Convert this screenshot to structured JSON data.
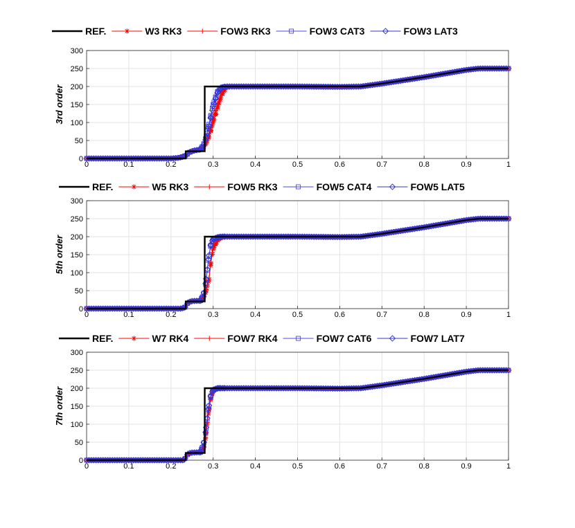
{
  "chart_data": [
    {
      "type": "line",
      "ylabel": "3rd order",
      "xlim": [
        0,
        1
      ],
      "ylim": [
        0,
        300
      ],
      "xticks": [
        "0",
        "0.1",
        "0.2",
        "0.3",
        "0.4",
        "0.5",
        "0.6",
        "0.7",
        "0.8",
        "0.9",
        "1"
      ],
      "yticks": [
        "0",
        "50",
        "100",
        "150",
        "200",
        "250",
        "300"
      ],
      "grid": true,
      "legend_position": "top, horizontal, outside",
      "series": [
        {
          "name": "REF.",
          "style": "reference",
          "color": "#000000",
          "x": [
            0,
            0.235,
            0.235,
            0.28,
            0.28,
            0.6,
            0.65,
            0.7,
            0.75,
            0.8,
            0.85,
            0.9,
            0.93,
            1.0
          ],
          "y": [
            0,
            0,
            20,
            20,
            200,
            200,
            200,
            208,
            217,
            226,
            236,
            246,
            250,
            250
          ]
        },
        {
          "name": "W3 RK3",
          "marker": "star",
          "color": "#ff0000",
          "x": [
            0,
            0.2,
            0.22,
            0.235,
            0.245,
            0.255,
            0.27,
            0.28,
            0.29,
            0.3,
            0.31,
            0.32,
            0.33,
            0.34,
            0.4,
            0.5,
            0.6,
            0.65,
            0.7,
            0.75,
            0.8,
            0.85,
            0.9,
            0.93,
            1.0
          ],
          "y": [
            0,
            0,
            2,
            8,
            18,
            22,
            25,
            35,
            60,
            100,
            140,
            175,
            195,
            200,
            200,
            200,
            199,
            200,
            208,
            217,
            226,
            236,
            246,
            250,
            250
          ]
        },
        {
          "name": "FOW3 RK3",
          "marker": "plus",
          "color": "#ff0000",
          "x": [
            0,
            0.2,
            0.22,
            0.235,
            0.245,
            0.255,
            0.27,
            0.28,
            0.29,
            0.3,
            0.31,
            0.32,
            0.33,
            0.34,
            0.4,
            0.5,
            0.6,
            0.65,
            0.7,
            0.75,
            0.8,
            0.85,
            0.9,
            0.93,
            1.0
          ],
          "y": [
            0,
            0,
            2,
            8,
            18,
            22,
            25,
            38,
            68,
            110,
            150,
            182,
            197,
            200,
            200,
            200,
            199,
            200,
            208,
            217,
            226,
            236,
            246,
            250,
            250
          ]
        },
        {
          "name": "FOW3 CAT3",
          "marker": "square",
          "color": "#4444ff",
          "x": [
            0,
            0.2,
            0.22,
            0.235,
            0.245,
            0.255,
            0.27,
            0.28,
            0.29,
            0.3,
            0.31,
            0.32,
            0.33,
            0.4,
            0.5,
            0.6,
            0.65,
            0.7,
            0.75,
            0.8,
            0.85,
            0.9,
            0.93,
            1.0
          ],
          "y": [
            0,
            0,
            2,
            8,
            18,
            22,
            25,
            45,
            95,
            150,
            185,
            198,
            200,
            200,
            200,
            199,
            200,
            208,
            217,
            226,
            236,
            246,
            250,
            250
          ]
        },
        {
          "name": "FOW3 LAT3",
          "marker": "diamond",
          "color": "#3333cc",
          "x": [
            0,
            0.2,
            0.22,
            0.235,
            0.245,
            0.255,
            0.27,
            0.28,
            0.29,
            0.3,
            0.31,
            0.32,
            0.33,
            0.4,
            0.5,
            0.6,
            0.65,
            0.7,
            0.75,
            0.8,
            0.85,
            0.9,
            0.93,
            1.0
          ],
          "y": [
            0,
            0,
            2,
            8,
            18,
            22,
            25,
            42,
            90,
            145,
            182,
            197,
            200,
            200,
            200,
            199,
            200,
            208,
            217,
            226,
            236,
            246,
            250,
            250
          ]
        }
      ]
    },
    {
      "type": "line",
      "ylabel": "5th order",
      "xlim": [
        0,
        1
      ],
      "ylim": [
        0,
        300
      ],
      "xticks": [
        "0",
        "0.1",
        "0.2",
        "0.3",
        "0.4",
        "0.5",
        "0.6",
        "0.7",
        "0.8",
        "0.9",
        "1"
      ],
      "yticks": [
        "0",
        "50",
        "100",
        "150",
        "200",
        "250",
        "300"
      ],
      "grid": true,
      "legend_position": "top, horizontal, outside",
      "series": [
        {
          "name": "REF.",
          "style": "reference",
          "color": "#000000",
          "x": [
            0,
            0.235,
            0.235,
            0.28,
            0.28,
            0.6,
            0.65,
            0.7,
            0.75,
            0.8,
            0.85,
            0.9,
            0.93,
            1.0
          ],
          "y": [
            0,
            0,
            20,
            20,
            200,
            200,
            200,
            208,
            217,
            226,
            236,
            246,
            250,
            250
          ]
        },
        {
          "name": "W5 RK3",
          "marker": "star",
          "color": "#ff0000",
          "x": [
            0,
            0.225,
            0.235,
            0.24,
            0.25,
            0.27,
            0.28,
            0.29,
            0.295,
            0.3,
            0.31,
            0.32,
            0.33,
            0.4,
            0.5,
            0.6,
            0.65,
            0.7,
            0.75,
            0.8,
            0.85,
            0.9,
            0.93,
            1.0
          ],
          "y": [
            0,
            0,
            5,
            17,
            21,
            22,
            35,
            80,
            130,
            165,
            190,
            198,
            200,
            200,
            200,
            199,
            200,
            208,
            217,
            226,
            236,
            246,
            250,
            250
          ]
        },
        {
          "name": "FOW5 RK3",
          "marker": "plus",
          "color": "#ff0000",
          "x": [
            0,
            0.225,
            0.235,
            0.24,
            0.25,
            0.27,
            0.28,
            0.29,
            0.295,
            0.3,
            0.31,
            0.32,
            0.33,
            0.4,
            0.5,
            0.6,
            0.65,
            0.7,
            0.75,
            0.8,
            0.85,
            0.9,
            0.93,
            1.0
          ],
          "y": [
            0,
            0,
            5,
            17,
            21,
            22,
            37,
            85,
            135,
            170,
            192,
            199,
            200,
            200,
            200,
            199,
            200,
            208,
            217,
            226,
            236,
            246,
            250,
            250
          ]
        },
        {
          "name": "FOW5 CAT4",
          "marker": "square",
          "color": "#4444ff",
          "x": [
            0,
            0.225,
            0.235,
            0.24,
            0.25,
            0.27,
            0.28,
            0.29,
            0.295,
            0.3,
            0.31,
            0.32,
            0.4,
            0.5,
            0.6,
            0.65,
            0.7,
            0.75,
            0.8,
            0.85,
            0.9,
            0.93,
            1.0
          ],
          "y": [
            0,
            0,
            5,
            17,
            21,
            22,
            48,
            145,
            180,
            192,
            198,
            200,
            200,
            200,
            199,
            200,
            208,
            217,
            226,
            236,
            246,
            250,
            250
          ]
        },
        {
          "name": "FOW5 LAT5",
          "marker": "diamond",
          "color": "#3333cc",
          "x": [
            0,
            0.225,
            0.235,
            0.24,
            0.25,
            0.27,
            0.28,
            0.29,
            0.295,
            0.3,
            0.31,
            0.32,
            0.4,
            0.5,
            0.6,
            0.65,
            0.7,
            0.75,
            0.8,
            0.85,
            0.9,
            0.93,
            1.0
          ],
          "y": [
            0,
            0,
            5,
            17,
            21,
            22,
            50,
            148,
            182,
            193,
            198,
            200,
            200,
            200,
            199,
            200,
            208,
            217,
            226,
            236,
            246,
            250,
            250
          ]
        }
      ]
    },
    {
      "type": "line",
      "ylabel": "7th order",
      "xlim": [
        0,
        1
      ],
      "ylim": [
        0,
        300
      ],
      "xticks": [
        "0",
        "0.1",
        "0.2",
        "0.3",
        "0.4",
        "0.5",
        "0.6",
        "0.7",
        "0.8",
        "0.9",
        "1"
      ],
      "yticks": [
        "0",
        "50",
        "100",
        "150",
        "200",
        "250",
        "300"
      ],
      "grid": true,
      "legend_position": "top, horizontal, outside",
      "series": [
        {
          "name": "REF.",
          "style": "reference",
          "color": "#000000",
          "x": [
            0,
            0.235,
            0.235,
            0.28,
            0.28,
            0.6,
            0.65,
            0.7,
            0.75,
            0.8,
            0.85,
            0.9,
            0.93,
            1.0
          ],
          "y": [
            0,
            0,
            20,
            20,
            200,
            200,
            200,
            208,
            217,
            226,
            236,
            246,
            250,
            250
          ]
        },
        {
          "name": "W7 RK4",
          "marker": "star",
          "color": "#ff0000",
          "x": [
            0,
            0.228,
            0.235,
            0.24,
            0.25,
            0.27,
            0.28,
            0.285,
            0.29,
            0.295,
            0.3,
            0.31,
            0.32,
            0.4,
            0.5,
            0.6,
            0.65,
            0.7,
            0.75,
            0.8,
            0.85,
            0.9,
            0.93,
            1.0
          ],
          "y": [
            0,
            0,
            6,
            18,
            21,
            22,
            40,
            90,
            140,
            175,
            192,
            199,
            200,
            200,
            200,
            199,
            200,
            208,
            217,
            226,
            236,
            246,
            250,
            250
          ]
        },
        {
          "name": "FOW7 RK4",
          "marker": "plus",
          "color": "#ff0000",
          "x": [
            0,
            0.228,
            0.235,
            0.24,
            0.25,
            0.27,
            0.28,
            0.285,
            0.29,
            0.295,
            0.3,
            0.31,
            0.32,
            0.4,
            0.5,
            0.6,
            0.65,
            0.7,
            0.75,
            0.8,
            0.85,
            0.9,
            0.93,
            1.0
          ],
          "y": [
            0,
            0,
            6,
            18,
            21,
            22,
            42,
            95,
            145,
            178,
            193,
            199,
            200,
            200,
            200,
            199,
            200,
            208,
            217,
            226,
            236,
            246,
            250,
            250
          ]
        },
        {
          "name": "FOW7 CAT6",
          "marker": "square",
          "color": "#4444ff",
          "x": [
            0,
            0.228,
            0.235,
            0.24,
            0.25,
            0.27,
            0.28,
            0.285,
            0.29,
            0.295,
            0.3,
            0.31,
            0.4,
            0.5,
            0.6,
            0.65,
            0.7,
            0.75,
            0.8,
            0.85,
            0.9,
            0.93,
            1.0
          ],
          "y": [
            0,
            0,
            6,
            18,
            21,
            22,
            55,
            105,
            150,
            182,
            195,
            200,
            200,
            200,
            199,
            200,
            208,
            217,
            226,
            236,
            246,
            250,
            250
          ]
        },
        {
          "name": "FOW7 LAT7",
          "marker": "diamond",
          "color": "#3333cc",
          "x": [
            0,
            0.228,
            0.235,
            0.24,
            0.25,
            0.27,
            0.28,
            0.285,
            0.29,
            0.295,
            0.3,
            0.31,
            0.4,
            0.5,
            0.6,
            0.65,
            0.7,
            0.75,
            0.8,
            0.85,
            0.9,
            0.93,
            1.0
          ],
          "y": [
            0,
            0,
            6,
            18,
            21,
            22,
            57,
            108,
            152,
            183,
            195,
            200,
            200,
            200,
            199,
            200,
            208,
            217,
            226,
            236,
            246,
            250,
            250
          ]
        }
      ]
    }
  ]
}
